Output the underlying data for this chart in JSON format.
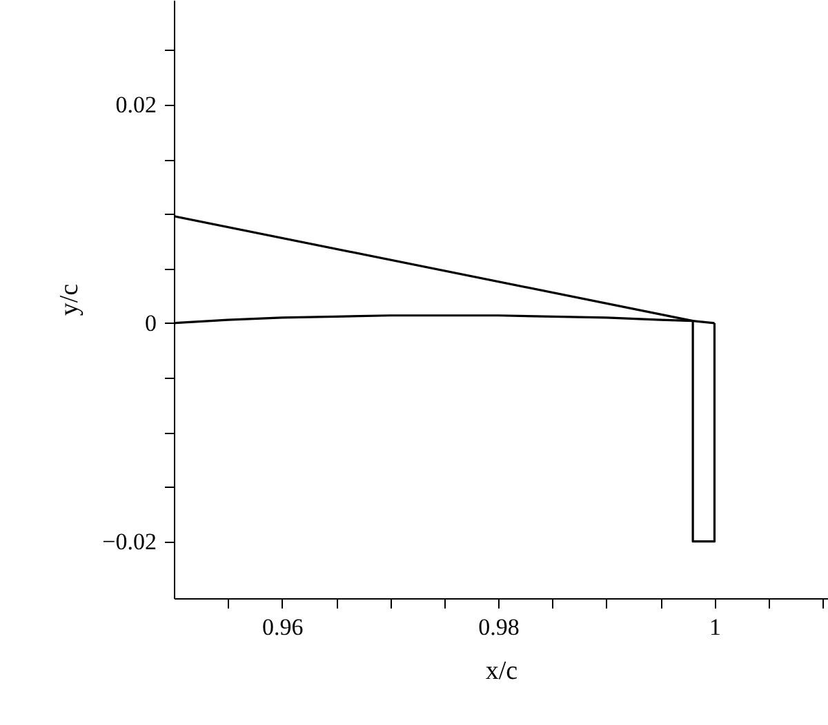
{
  "chart_data": {
    "type": "line",
    "xlabel": "x/c",
    "ylabel": "y/c",
    "xlim": [
      0.95,
      1.0105
    ],
    "ylim": [
      -0.0252,
      0.0296
    ],
    "xticks": [
      {
        "value": 0.955,
        "label": null
      },
      {
        "value": 0.96,
        "label": "0.96"
      },
      {
        "value": 0.965,
        "label": null
      },
      {
        "value": 0.97,
        "label": null
      },
      {
        "value": 0.975,
        "label": null
      },
      {
        "value": 0.98,
        "label": "0.98"
      },
      {
        "value": 0.985,
        "label": null
      },
      {
        "value": 0.99,
        "label": null
      },
      {
        "value": 0.995,
        "label": null
      },
      {
        "value": 1,
        "label": "1"
      },
      {
        "value": 1.005,
        "label": null
      },
      {
        "value": 1.01,
        "label": null
      }
    ],
    "yticks": [
      {
        "value": -0.02,
        "label": "−0.02"
      },
      {
        "value": -0.015,
        "label": null
      },
      {
        "value": -0.01,
        "label": null
      },
      {
        "value": -0.005,
        "label": null
      },
      {
        "value": 0,
        "label": "0"
      },
      {
        "value": 0.005,
        "label": null
      },
      {
        "value": 0.01,
        "label": null
      },
      {
        "value": 0.015,
        "label": null
      },
      {
        "value": 0.02,
        "label": "0.02"
      },
      {
        "value": 0.025,
        "label": null
      }
    ],
    "grid": false,
    "marker": "none",
    "line_style": "solid",
    "series": [
      {
        "color": "#000000",
        "x": [
          0.95,
          0.998
        ],
        "values": [
          0.0098,
          0.0002
        ]
      },
      {
        "color": "#000000",
        "x": [
          0.95,
          0.955,
          0.96,
          0.965,
          0.97,
          0.975,
          0.98,
          0.985,
          0.99,
          0.995,
          0.998,
          1
        ],
        "values": [
          0,
          0.0003,
          0.0005,
          0.0006,
          0.0007,
          0.0007,
          0.0007,
          0.0006,
          0.0005,
          0.0003,
          0.0002,
          0
        ]
      },
      {
        "color": "#000000",
        "x": [
          0.998,
          0.998,
          1,
          1
        ],
        "values": [
          0.0002,
          -0.02,
          -0.02,
          0
        ]
      }
    ]
  }
}
